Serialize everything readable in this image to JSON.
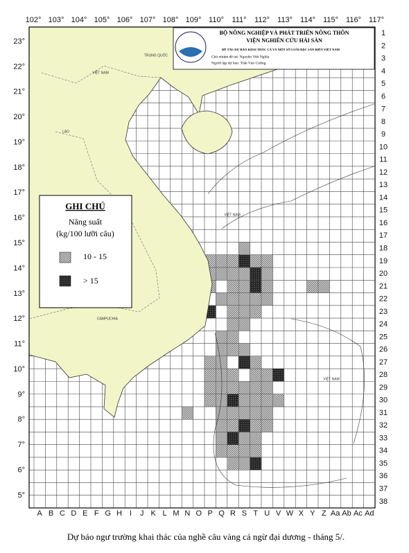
{
  "map": {
    "longitudes": [
      "102°",
      "103°",
      "104°",
      "105°",
      "106°",
      "107°",
      "108°",
      "109°",
      "110°",
      "111°",
      "112°",
      "113°",
      "114°",
      "115°",
      "116°",
      "117°"
    ],
    "latitudes": [
      "23°",
      "22°",
      "21°",
      "20°",
      "19°",
      "18°",
      "17°",
      "16°",
      "15°",
      "14°",
      "13°",
      "12°",
      "11°",
      "10°",
      "9°",
      "8°",
      "7°",
      "6°",
      "5°"
    ],
    "rows": [
      "1",
      "2",
      "3",
      "4",
      "5",
      "6",
      "7",
      "8",
      "9",
      "10",
      "11",
      "12",
      "13",
      "14",
      "15",
      "16",
      "17",
      "18",
      "19",
      "20",
      "21",
      "22",
      "23",
      "24",
      "25",
      "26",
      "27",
      "28",
      "29",
      "30",
      "31",
      "32",
      "33",
      "34",
      "35",
      "36",
      "37",
      "38"
    ],
    "columns": [
      "A",
      "B",
      "C",
      "D",
      "E",
      "F",
      "G",
      "H",
      "I",
      "J",
      "K",
      "L",
      "M",
      "N",
      "O",
      "P",
      "Q",
      "R",
      "S",
      "T",
      "U",
      "V",
      "W",
      "X",
      "Y",
      "Z",
      "Aa",
      "Ab",
      "Ac",
      "Ad"
    ],
    "places": [
      "TRUNG QUỐC",
      "VIỆT NAM",
      "LÀO",
      "CAMPUCHIA",
      "VIỆT NAM",
      "VIỆT NAM"
    ]
  },
  "header": {
    "ministry": "BỘ NÔNG NGHIỆP VÀ PHÁT TRIỂN NÔNG THÔN",
    "institute": "VIỆN NGHIÊN CỨU HẢI SẢN",
    "project": "ĐỀ TÀI: DỰ BÁO KHAI THÁC CÁ VÀ MỘT SỐ LOÀI ĐẶC SẢN BIỂN VIỆT NAM",
    "leader": "Chủ nhiệm đề tài: Nguyễn Viết Nghĩa",
    "forecaster": "Người lập dự báo: Trần Văn Cường"
  },
  "legend": {
    "title": "GHI CHÚ",
    "subtitle": "Năng suất",
    "unit": "(kg/100 lưỡi câu)",
    "classes": [
      {
        "label": "10 - 15",
        "cells": [
          [
            "S",
            18
          ],
          [
            "P",
            19
          ],
          [
            "Q",
            19
          ],
          [
            "R",
            19
          ],
          [
            "T",
            19
          ],
          [
            "U",
            19
          ],
          [
            "P",
            20
          ],
          [
            "Q",
            20
          ],
          [
            "R",
            20
          ],
          [
            "S",
            20
          ],
          [
            "U",
            20
          ],
          [
            "P",
            21
          ],
          [
            "R",
            21
          ],
          [
            "S",
            21
          ],
          [
            "U",
            21
          ],
          [
            "Y",
            21
          ],
          [
            "Z",
            21
          ],
          [
            "Q",
            22
          ],
          [
            "R",
            22
          ],
          [
            "S",
            22
          ],
          [
            "T",
            22
          ],
          [
            "U",
            22
          ],
          [
            "R",
            23
          ],
          [
            "S",
            23
          ],
          [
            "T",
            23
          ],
          [
            "R",
            24
          ],
          [
            "S",
            24
          ],
          [
            "Q",
            25
          ],
          [
            "R",
            25
          ],
          [
            "Q",
            26
          ],
          [
            "R",
            26
          ],
          [
            "S",
            26
          ],
          [
            "P",
            27
          ],
          [
            "Q",
            27
          ],
          [
            "T",
            27
          ],
          [
            "P",
            28
          ],
          [
            "Q",
            28
          ],
          [
            "R",
            28
          ],
          [
            "T",
            28
          ],
          [
            "U",
            28
          ],
          [
            "P",
            29
          ],
          [
            "Q",
            29
          ],
          [
            "R",
            29
          ],
          [
            "S",
            29
          ],
          [
            "T",
            29
          ],
          [
            "U",
            29
          ],
          [
            "P",
            30
          ],
          [
            "Q",
            30
          ],
          [
            "S",
            30
          ],
          [
            "T",
            30
          ],
          [
            "U",
            30
          ],
          [
            "V",
            30
          ],
          [
            "N",
            31
          ],
          [
            "Q",
            31
          ],
          [
            "R",
            31
          ],
          [
            "S",
            31
          ],
          [
            "T",
            31
          ],
          [
            "U",
            31
          ],
          [
            "Q",
            32
          ],
          [
            "R",
            32
          ],
          [
            "T",
            32
          ],
          [
            "U",
            32
          ],
          [
            "Q",
            33
          ],
          [
            "S",
            33
          ],
          [
            "T",
            33
          ],
          [
            "Q",
            34
          ],
          [
            "R",
            34
          ],
          [
            "S",
            34
          ],
          [
            "T",
            34
          ],
          [
            "R",
            35
          ],
          [
            "S",
            35
          ]
        ]
      },
      {
        "label": "> 15",
        "cells": [
          [
            "S",
            19
          ],
          [
            "T",
            20
          ],
          [
            "T",
            21
          ],
          [
            "P",
            23
          ],
          [
            "S",
            27
          ],
          [
            "V",
            28
          ],
          [
            "R",
            30
          ],
          [
            "S",
            32
          ],
          [
            "R",
            33
          ],
          [
            "T",
            35
          ]
        ]
      }
    ]
  },
  "caption": "Dự báo ngư trường khai thác của nghề câu vàng cá ngừ đại dương - tháng 5/."
}
